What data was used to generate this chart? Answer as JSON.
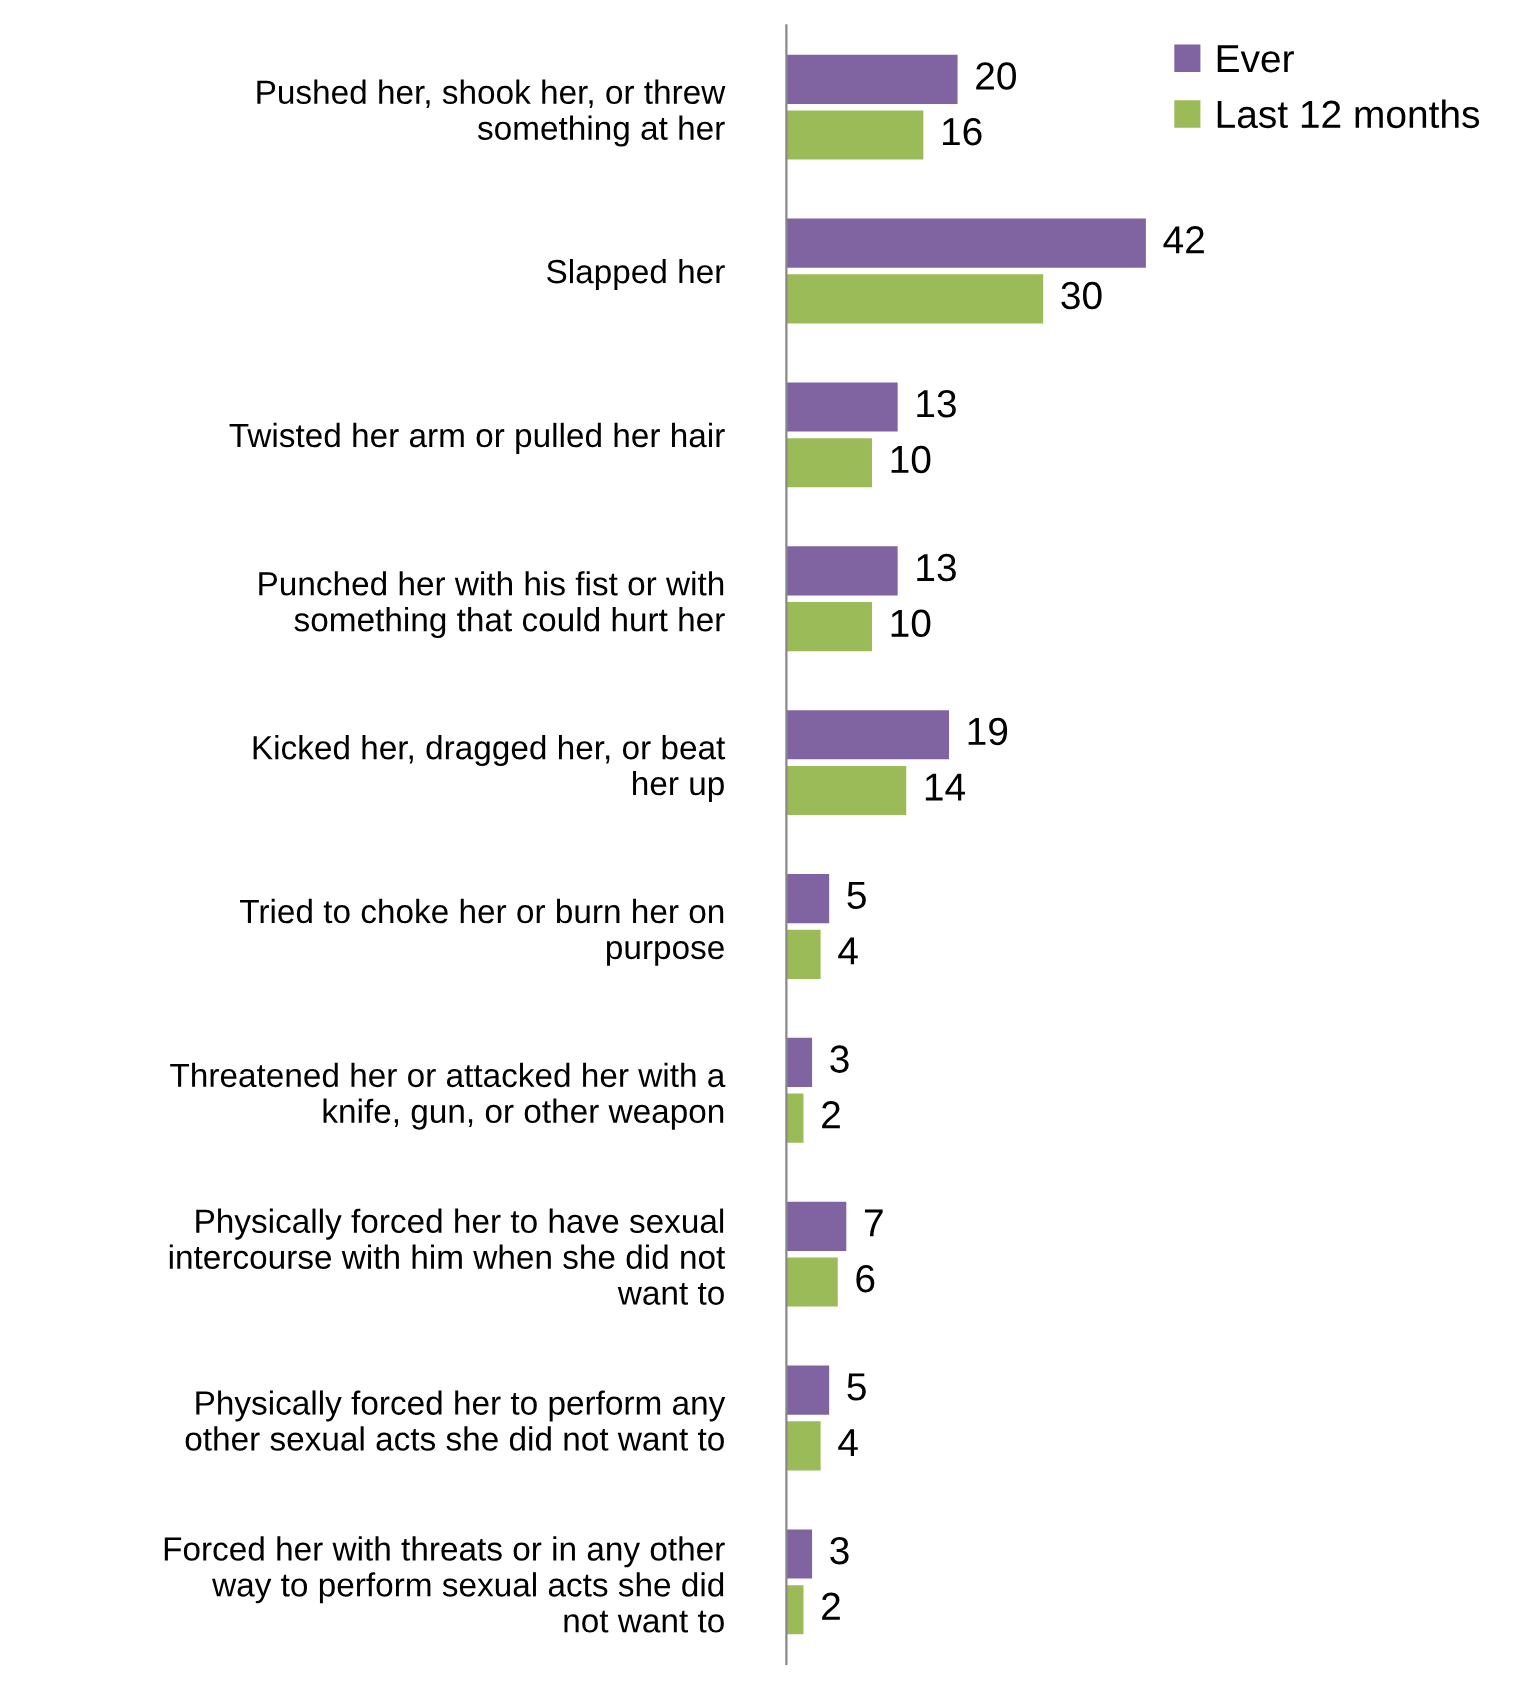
{
  "chart_data": {
    "type": "bar",
    "orientation": "horizontal",
    "categories": [
      "Pushed her, shook her, or threw\nsomething at her",
      "Slapped her",
      "Twisted her arm or pulled her hair",
      "Punched her with his fist or with\nsomething that could hurt her",
      "Kicked her, dragged her, or beat\nher up",
      "Tried to choke her or burn her on\npurpose",
      "Threatened her or attacked her with a\nknife, gun, or other weapon",
      "Physically forced her to have sexual\nintercourse with him when she did not\nwant to",
      "Physically forced her to perform any\nother sexual acts she did not want to",
      "Forced her with threats or in any other\nway to perform sexual acts she did\nnot want to"
    ],
    "series": [
      {
        "name": "Ever",
        "color": "#8064a2",
        "values": [
          20,
          42,
          13,
          13,
          19,
          5,
          3,
          7,
          5,
          3
        ]
      },
      {
        "name": "Last 12 months",
        "color": "#9bbb59",
        "values": [
          16,
          30,
          10,
          10,
          14,
          4,
          2,
          6,
          4,
          2
        ]
      }
    ],
    "data_labels": true,
    "legend": "top right",
    "grid": false
  }
}
